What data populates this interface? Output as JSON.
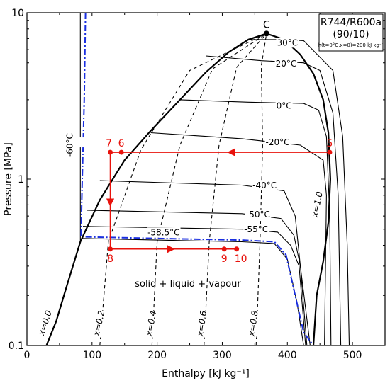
{
  "chart_data": {
    "type": "line",
    "title": "",
    "xlabel": "Enthalpy [kJ kg⁻¹]",
    "ylabel": "Pressure [MPa]",
    "xlim": [
      0,
      550
    ],
    "ylim": [
      0.1,
      10
    ],
    "y_scale": "log",
    "x_ticks": [
      0,
      100,
      200,
      300,
      400,
      500
    ],
    "y_ticks": [
      0.1,
      1,
      10
    ],
    "x_tick_labels": [
      "0",
      "100",
      "200",
      "300",
      "400",
      "500"
    ],
    "y_tick_labels": [
      "0.1",
      "1",
      "10"
    ],
    "grid": false,
    "legend": {
      "fluid": "R744/R600a",
      "composition": "(90/10)",
      "reference": "h(t=0°C,x=0)=200 kJ kg⁻¹"
    },
    "critical_point": {
      "label": "C",
      "h": 368,
      "p": 7.5
    },
    "saturation_dome": {
      "liquid": [
        [
          30,
          0.1
        ],
        [
          45,
          0.14
        ],
        [
          60,
          0.22
        ],
        [
          82,
          0.42
        ],
        [
          112,
          0.75
        ],
        [
          150,
          1.3
        ],
        [
          190,
          1.95
        ],
        [
          235,
          3.0
        ],
        [
          275,
          4.4
        ],
        [
          310,
          5.8
        ],
        [
          340,
          6.9
        ],
        [
          368,
          7.5
        ]
      ],
      "vapour": [
        [
          368,
          7.5
        ],
        [
          395,
          6.9
        ],
        [
          420,
          5.6
        ],
        [
          440,
          4.3
        ],
        [
          455,
          3.0
        ],
        [
          463,
          1.9
        ],
        [
          466,
          1.0
        ],
        [
          463,
          0.55
        ],
        [
          455,
          0.32
        ],
        [
          445,
          0.2
        ],
        [
          440,
          0.1
        ]
      ]
    },
    "quality_lines": [
      {
        "label": "x=0.0",
        "points": [
          [
            30,
            0.1
          ],
          [
            82,
            0.42
          ]
        ]
      },
      {
        "label": "x=0.2",
        "points": [
          [
            112,
            0.1
          ],
          [
            125,
            0.42
          ],
          [
            175,
            1.5
          ],
          [
            250,
            4.5
          ],
          [
            368,
            7.5
          ]
        ]
      },
      {
        "label": "x=0.4",
        "points": [
          [
            192,
            0.1
          ],
          [
            200,
            0.42
          ],
          [
            235,
            1.6
          ],
          [
            285,
            4.6
          ],
          [
            368,
            7.5
          ]
        ]
      },
      {
        "label": "x=0.6",
        "points": [
          [
            272,
            0.1
          ],
          [
            280,
            0.42
          ],
          [
            295,
            1.6
          ],
          [
            322,
            4.7
          ],
          [
            368,
            7.5
          ]
        ]
      },
      {
        "label": "x=0.8",
        "points": [
          [
            352,
            0.1
          ],
          [
            358,
            0.42
          ],
          [
            362,
            1.6
          ],
          [
            360,
            4.8
          ],
          [
            368,
            7.5
          ]
        ]
      },
      {
        "label": "x=1.0",
        "points": []
      }
    ],
    "isotherms": [
      {
        "label": "30°C",
        "points": [
          [
            340,
            6.9
          ],
          [
            395,
            6.9
          ],
          [
            425,
            6.8
          ],
          [
            470,
            4.5
          ],
          [
            485,
            1.8
          ],
          [
            492,
            0.4
          ],
          [
            495,
            0.1
          ]
        ]
      },
      {
        "label": "20°C",
        "points": [
          [
            275,
            5.5
          ],
          [
            360,
            5.15
          ],
          [
            425,
            5.0
          ],
          [
            450,
            4.5
          ],
          [
            470,
            2.5
          ],
          [
            478,
            0.8
          ],
          [
            482,
            0.1
          ]
        ]
      },
      {
        "label": "0°C",
        "points": [
          [
            235,
            3.0
          ],
          [
            340,
            2.9
          ],
          [
            425,
            2.85
          ],
          [
            448,
            2.6
          ],
          [
            460,
            1.8
          ],
          [
            465,
            0.6
          ],
          [
            467,
            0.1
          ]
        ]
      },
      {
        "label": "-20°C",
        "points": [
          [
            190,
            1.9
          ],
          [
            330,
            1.75
          ],
          [
            420,
            1.6
          ],
          [
            455,
            1.3
          ],
          [
            460,
            0.8
          ],
          [
            457,
            0.1
          ]
        ]
      },
      {
        "label": "-40°C",
        "points": [
          [
            112,
            0.98
          ],
          [
            330,
            0.92
          ],
          [
            395,
            0.85
          ],
          [
            412,
            0.6
          ],
          [
            420,
            0.3
          ],
          [
            435,
            0.1
          ]
        ]
      },
      {
        "label": "-50°C",
        "points": [
          [
            92,
            0.65
          ],
          [
            330,
            0.62
          ],
          [
            390,
            0.58
          ],
          [
            410,
            0.46
          ],
          [
            420,
            0.3
          ],
          [
            430,
            0.1
          ]
        ]
      },
      {
        "label": "-55°C",
        "points": [
          [
            86,
            0.52
          ],
          [
            330,
            0.5
          ],
          [
            385,
            0.48
          ],
          [
            405,
            0.4
          ],
          [
            418,
            0.3
          ],
          [
            428,
            0.1
          ]
        ]
      },
      {
        "label": "-58.5°C",
        "points": [
          [
            84,
            0.44
          ],
          [
            200,
            0.43
          ],
          [
            330,
            0.42
          ],
          [
            380,
            0.41
          ],
          [
            400,
            0.33
          ],
          [
            415,
            0.18
          ],
          [
            425,
            0.1
          ]
        ]
      },
      {
        "label": "-60°C",
        "points": [
          [
            82,
            10
          ],
          [
            82,
            0.42
          ]
        ]
      }
    ],
    "solid_boundary": {
      "style": "dash-dot",
      "color": "#1a2fe0",
      "points": [
        [
          90,
          10
        ],
        [
          88,
          3.0
        ],
        [
          85,
          1.0
        ],
        [
          83,
          0.45
        ],
        [
          200,
          0.44
        ],
        [
          330,
          0.43
        ],
        [
          380,
          0.42
        ],
        [
          398,
          0.35
        ],
        [
          412,
          0.2
        ],
        [
          425,
          0.12
        ],
        [
          440,
          0.1
        ]
      ]
    },
    "region_label": "solid + liquid + vapour",
    "cycle": {
      "color": "#e8120c",
      "points": [
        {
          "label": "5",
          "h": 465,
          "p": 1.45
        },
        {
          "label": "6",
          "h": 145,
          "p": 1.45
        },
        {
          "label": "7",
          "h": 128,
          "p": 1.45
        },
        {
          "label": "8",
          "h": 128,
          "p": 0.38
        },
        {
          "label": "9",
          "h": 303,
          "p": 0.38
        },
        {
          "label": "10",
          "h": 322,
          "p": 0.38
        }
      ],
      "segments": [
        {
          "from": "5",
          "to": "7",
          "arrow_at": 310
        },
        {
          "from": "7",
          "to": "8",
          "arrow_at": 0.7
        },
        {
          "from": "8",
          "to": "10",
          "arrow_at": 225
        }
      ]
    }
  }
}
